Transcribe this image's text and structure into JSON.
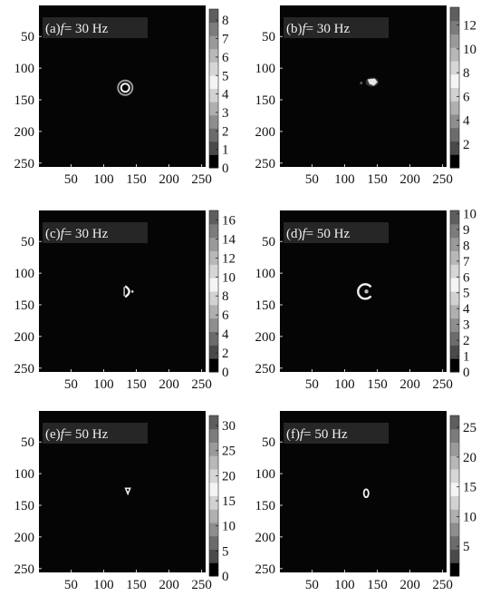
{
  "chart_data": [
    {
      "type": "heatmap",
      "panel": "a",
      "label_prefix": "(a)",
      "label_var": "f",
      "label_value": "= 30 Hz",
      "xticks": [
        "50",
        "100",
        "150",
        "200",
        "250"
      ],
      "yticks": [
        "50",
        "100",
        "150",
        "200",
        "250"
      ],
      "xlim": [
        1,
        256
      ],
      "ylim": [
        1,
        256
      ],
      "colorbar": {
        "min": 0,
        "max": 8.6,
        "ticks": [
          "0",
          "1",
          "2",
          "3",
          "4",
          "5",
          "6",
          "7",
          "8"
        ]
      },
      "feature": {
        "shape": "double-ring",
        "center": [
          133,
          131
        ]
      }
    },
    {
      "type": "heatmap",
      "panel": "b",
      "label_prefix": "(b)",
      "label_var": "f",
      "label_value": "= 30 Hz",
      "xticks": [
        "50",
        "100",
        "150",
        "200",
        "250"
      ],
      "yticks": [
        "50",
        "100",
        "150",
        "200",
        "250"
      ],
      "xlim": [
        1,
        256
      ],
      "ylim": [
        1,
        256
      ],
      "colorbar": {
        "min": 0,
        "max": 13.5,
        "ticks": [
          "2",
          "4",
          "6",
          "8",
          "10",
          "12"
        ]
      },
      "feature": {
        "shape": "blob",
        "center": [
          142,
          122
        ]
      }
    },
    {
      "type": "heatmap",
      "panel": "c",
      "label_prefix": "(c)",
      "label_var": "f",
      "label_value": "= 30 Hz",
      "xticks": [
        "50",
        "100",
        "150",
        "200",
        "250"
      ],
      "yticks": [
        "50",
        "100",
        "150",
        "200",
        "250"
      ],
      "xlim": [
        1,
        256
      ],
      "ylim": [
        1,
        256
      ],
      "colorbar": {
        "min": 0,
        "max": 17,
        "ticks": [
          "0",
          "2",
          "4",
          "6",
          "8",
          "10",
          "12",
          "14",
          "16"
        ]
      },
      "feature": {
        "shape": "crescent",
        "center": [
          137,
          129
        ]
      }
    },
    {
      "type": "heatmap",
      "panel": "d",
      "label_prefix": "(d)",
      "label_var": "f",
      "label_value": "= 50 Hz",
      "xticks": [
        "50",
        "100",
        "150",
        "200",
        "250"
      ],
      "yticks": [
        "50",
        "100",
        "150",
        "200",
        "250"
      ],
      "xlim": [
        1,
        256
      ],
      "ylim": [
        1,
        256
      ],
      "colorbar": {
        "min": 0,
        "max": 10.2,
        "ticks": [
          "0",
          "1",
          "2",
          "3",
          "4",
          "5",
          "6",
          "7",
          "8",
          "9",
          "10"
        ]
      },
      "feature": {
        "shape": "c-ring",
        "center": [
          132,
          129
        ]
      }
    },
    {
      "type": "heatmap",
      "panel": "e",
      "label_prefix": "(e)",
      "label_var": "f",
      "label_value": "= 50 Hz",
      "xticks": [
        "50",
        "100",
        "150",
        "200",
        "250"
      ],
      "yticks": [
        "50",
        "100",
        "150",
        "200",
        "250"
      ],
      "xlim": [
        1,
        256
      ],
      "ylim": [
        1,
        256
      ],
      "colorbar": {
        "min": 0,
        "max": 32,
        "ticks": [
          "0",
          "5",
          "10",
          "15",
          "20",
          "25",
          "30"
        ]
      },
      "feature": {
        "shape": "small-spot",
        "center": [
          137,
          126
        ]
      }
    },
    {
      "type": "heatmap",
      "panel": "f",
      "label_prefix": "(f)",
      "label_var": "f",
      "label_value": "= 50 Hz",
      "xticks": [
        "50",
        "100",
        "150",
        "200",
        "250"
      ],
      "yticks": [
        "50",
        "100",
        "150",
        "200",
        "250"
      ],
      "xlim": [
        1,
        256
      ],
      "ylim": [
        1,
        256
      ],
      "colorbar": {
        "min": 0,
        "max": 27,
        "ticks": [
          "5",
          "10",
          "15",
          "20",
          "25"
        ]
      },
      "feature": {
        "shape": "small-oval",
        "center": [
          133,
          131
        ]
      }
    }
  ]
}
